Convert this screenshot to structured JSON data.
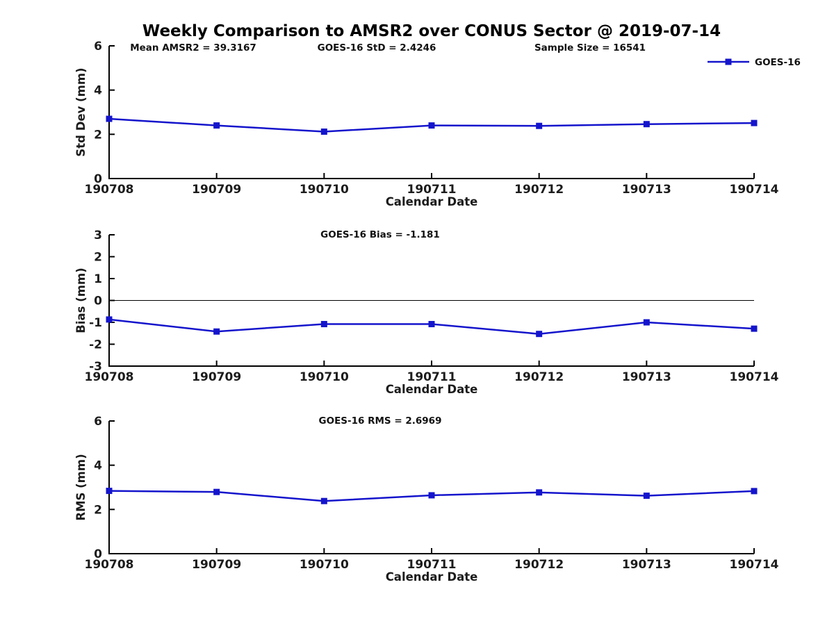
{
  "title": "Weekly Comparison to AMSR2 over CONUS Sector @ 2019-07-14",
  "legend": {
    "label": "GOES-16",
    "color": "#1414cc"
  },
  "chart_data": [
    {
      "type": "line",
      "ylabel": "Std Dev (mm)",
      "xlabel": "Calendar Date",
      "categories": [
        "190708",
        "190709",
        "190710",
        "190711",
        "190712",
        "190713",
        "190714"
      ],
      "series": [
        {
          "name": "GOES-16",
          "color": "#1414cc",
          "marker": "square",
          "values": [
            2.7,
            2.4,
            2.12,
            2.4,
            2.38,
            2.46,
            2.51
          ]
        }
      ],
      "ylim": [
        0,
        6
      ],
      "yticks": [
        0,
        2,
        4,
        6
      ],
      "grid": false,
      "zero_line": false,
      "legend_position": "top-right",
      "annotations": [
        {
          "text": "Mean AMSR2 = 39.3167"
        },
        {
          "text": "GOES-16 StD = 2.4246"
        },
        {
          "text": "Sample Size = 16541"
        }
      ]
    },
    {
      "type": "line",
      "ylabel": "Bias (mm)",
      "xlabel": "Calendar Date",
      "categories": [
        "190708",
        "190709",
        "190710",
        "190711",
        "190712",
        "190713",
        "190714"
      ],
      "series": [
        {
          "name": "GOES-16",
          "color": "#1414cc",
          "marker": "square",
          "values": [
            -0.87,
            -1.42,
            -1.08,
            -1.08,
            -1.53,
            -1.0,
            -1.29
          ]
        }
      ],
      "ylim": [
        -3,
        3
      ],
      "yticks": [
        -3,
        -2,
        -1,
        0,
        1,
        2,
        3
      ],
      "grid": false,
      "zero_line": true,
      "legend_position": "none",
      "annotations": [
        {
          "text": "GOES-16 Bias  = -1.181"
        }
      ]
    },
    {
      "type": "line",
      "ylabel": "RMS (mm)",
      "xlabel": "Calendar Date",
      "categories": [
        "190708",
        "190709",
        "190710",
        "190711",
        "190712",
        "190713",
        "190714"
      ],
      "series": [
        {
          "name": "GOES-16",
          "color": "#1414cc",
          "marker": "square",
          "values": [
            2.84,
            2.79,
            2.38,
            2.64,
            2.77,
            2.62,
            2.83
          ]
        }
      ],
      "ylim": [
        0,
        6
      ],
      "yticks": [
        0,
        2,
        4,
        6
      ],
      "grid": false,
      "zero_line": false,
      "legend_position": "none",
      "annotations": [
        {
          "text": "GOES-16 RMS = 2.6969"
        }
      ]
    }
  ]
}
